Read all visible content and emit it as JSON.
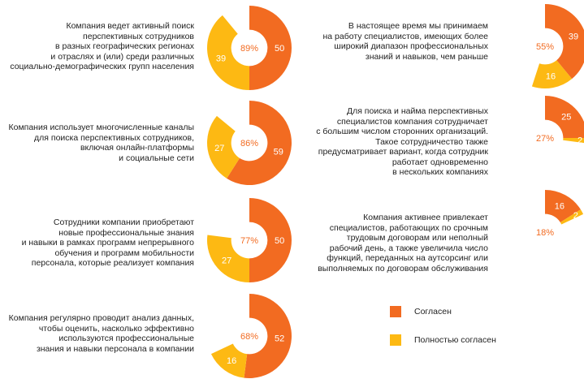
{
  "colors": {
    "agree": "#F26B21",
    "fully_agree": "#FDB913",
    "total_text": "#F26B21",
    "value_text": "#ffffff"
  },
  "legend": {
    "agree": "Согласен",
    "fully_agree": "Полностью согласен"
  },
  "chart_data": [
    {
      "type": "pie",
      "statement": "Компания ведет активный поиск\nперспективных сотрудников\nв разных географических регионах\nи отраслях и (или) среди различных\nсоциально-демографических групп населения",
      "series": [
        {
          "name": "Согласен",
          "value": 50
        },
        {
          "name": "Полностью согласен",
          "value": 39
        }
      ],
      "total_label": "89%"
    },
    {
      "type": "pie",
      "statement": "Компания использует многочисленные каналы\nдля поиска перспективных сотрудников,\nвключая онлайн-платформы\nи социальные сети",
      "series": [
        {
          "name": "Согласен",
          "value": 59
        },
        {
          "name": "Полностью согласен",
          "value": 27
        }
      ],
      "total_label": "86%"
    },
    {
      "type": "pie",
      "statement": "Сотрудники компании приобретают\nновые профессиональные знания\nи навыки в рамках программ непрерывного\nобучения и программ мобильности\nперсонала, которые реализует компания",
      "series": [
        {
          "name": "Согласен",
          "value": 50
        },
        {
          "name": "Полностью согласен",
          "value": 27
        }
      ],
      "total_label": "77%"
    },
    {
      "type": "pie",
      "statement": "Компания регулярно проводит анализ данных,\nчтобы оценить, насколько эффективно\nиспользуются профессиональные\nзнания и навыки персонала в компании",
      "series": [
        {
          "name": "Согласен",
          "value": 52
        },
        {
          "name": "Полностью согласен",
          "value": 16
        }
      ],
      "total_label": "68%"
    },
    {
      "type": "pie",
      "statement": "В настоящее время мы принимаем\nна работу специалистов, имеющих более\nширокий диапазон профессиональных\nзнаний и навыков, чем раньше",
      "series": [
        {
          "name": "Согласен",
          "value": 39
        },
        {
          "name": "Полностью согласен",
          "value": 16
        }
      ],
      "total_label": "55%"
    },
    {
      "type": "pie",
      "statement": "Для поиска и найма перспективных\nспециалистов компания сотрудничает\nс большим числом сторонних организаций.\nТакое сотрудничество также\nпредусматривает вариант, когда сотрудник\nработает одновременно\nв нескольких компаниях",
      "series": [
        {
          "name": "Согласен",
          "value": 25
        },
        {
          "name": "Полностью согласен",
          "value": 2
        }
      ],
      "total_label": "27%"
    },
    {
      "type": "pie",
      "statement": "Компания активнее привлекает\nспециалистов, работающих по срочным\nтрудовым договорам или неполный\nрабочий день, а также увеличила число\nфункций, переданных на аутсорсинг или\nвыполняемых по договорам обслуживания",
      "series": [
        {
          "name": "Согласен",
          "value": 16
        },
        {
          "name": "Полностью согласен",
          "value": 2
        }
      ],
      "total_label": "18%"
    }
  ]
}
